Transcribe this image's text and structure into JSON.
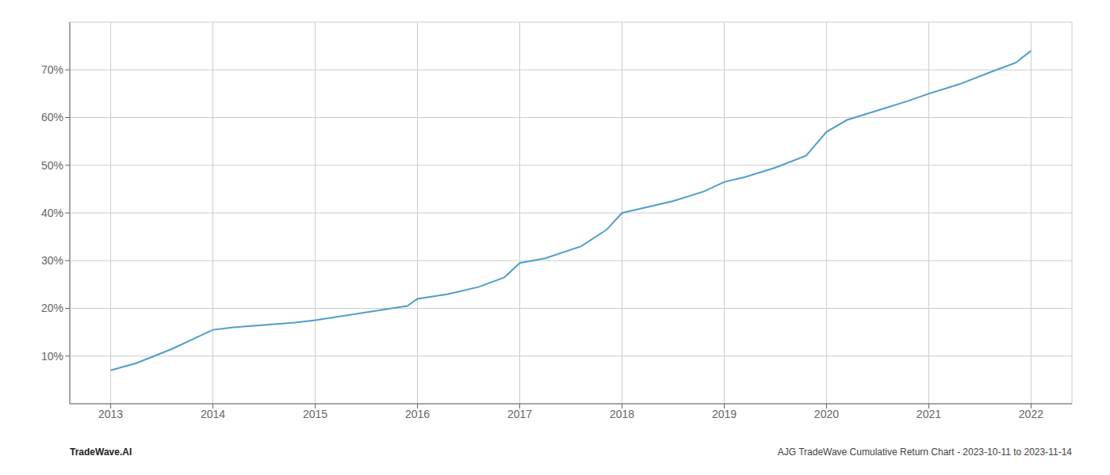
{
  "chart_data": {
    "type": "line",
    "annotations": [
      "TradeWave.AI",
      "AJG TradeWave Cumulative Return Chart - 2023-10-11 to 2023-11-14"
    ],
    "x": [
      2013.0,
      2013.25,
      2013.6,
      2013.85,
      2014.0,
      2014.2,
      2014.5,
      2014.8,
      2015.0,
      2015.3,
      2015.6,
      2015.9,
      2016.0,
      2016.3,
      2016.6,
      2016.85,
      2017.0,
      2017.25,
      2017.6,
      2017.85,
      2018.0,
      2018.2,
      2018.5,
      2018.8,
      2019.0,
      2019.2,
      2019.5,
      2019.8,
      2020.0,
      2020.2,
      2020.5,
      2020.8,
      2021.0,
      2021.3,
      2021.6,
      2021.85,
      2022.0
    ],
    "values": [
      7.0,
      8.5,
      11.5,
      14.0,
      15.5,
      16.0,
      16.5,
      17.0,
      17.5,
      18.5,
      19.5,
      20.5,
      22.0,
      23.0,
      24.5,
      26.5,
      29.5,
      30.5,
      33.0,
      36.5,
      40.0,
      41.0,
      42.5,
      44.5,
      46.5,
      47.5,
      49.5,
      52.0,
      57.0,
      59.5,
      61.5,
      63.5,
      65.0,
      67.0,
      69.5,
      71.5,
      74.0
    ],
    "color": "#4d9fcc",
    "xlim": [
      2012.6,
      2022.4
    ],
    "ylim": [
      0,
      80
    ],
    "xticks": [
      2013,
      2014,
      2015,
      2016,
      2017,
      2018,
      2019,
      2020,
      2021,
      2022
    ],
    "yticks": [
      {
        "value": 10,
        "label": "10%"
      },
      {
        "value": 20,
        "label": "20%"
      },
      {
        "value": 30,
        "label": "30%"
      },
      {
        "value": 40,
        "label": "40%"
      },
      {
        "value": 50,
        "label": "50%"
      },
      {
        "value": 60,
        "label": "60%"
      },
      {
        "value": 70,
        "label": "70%"
      }
    ],
    "grid": true
  }
}
